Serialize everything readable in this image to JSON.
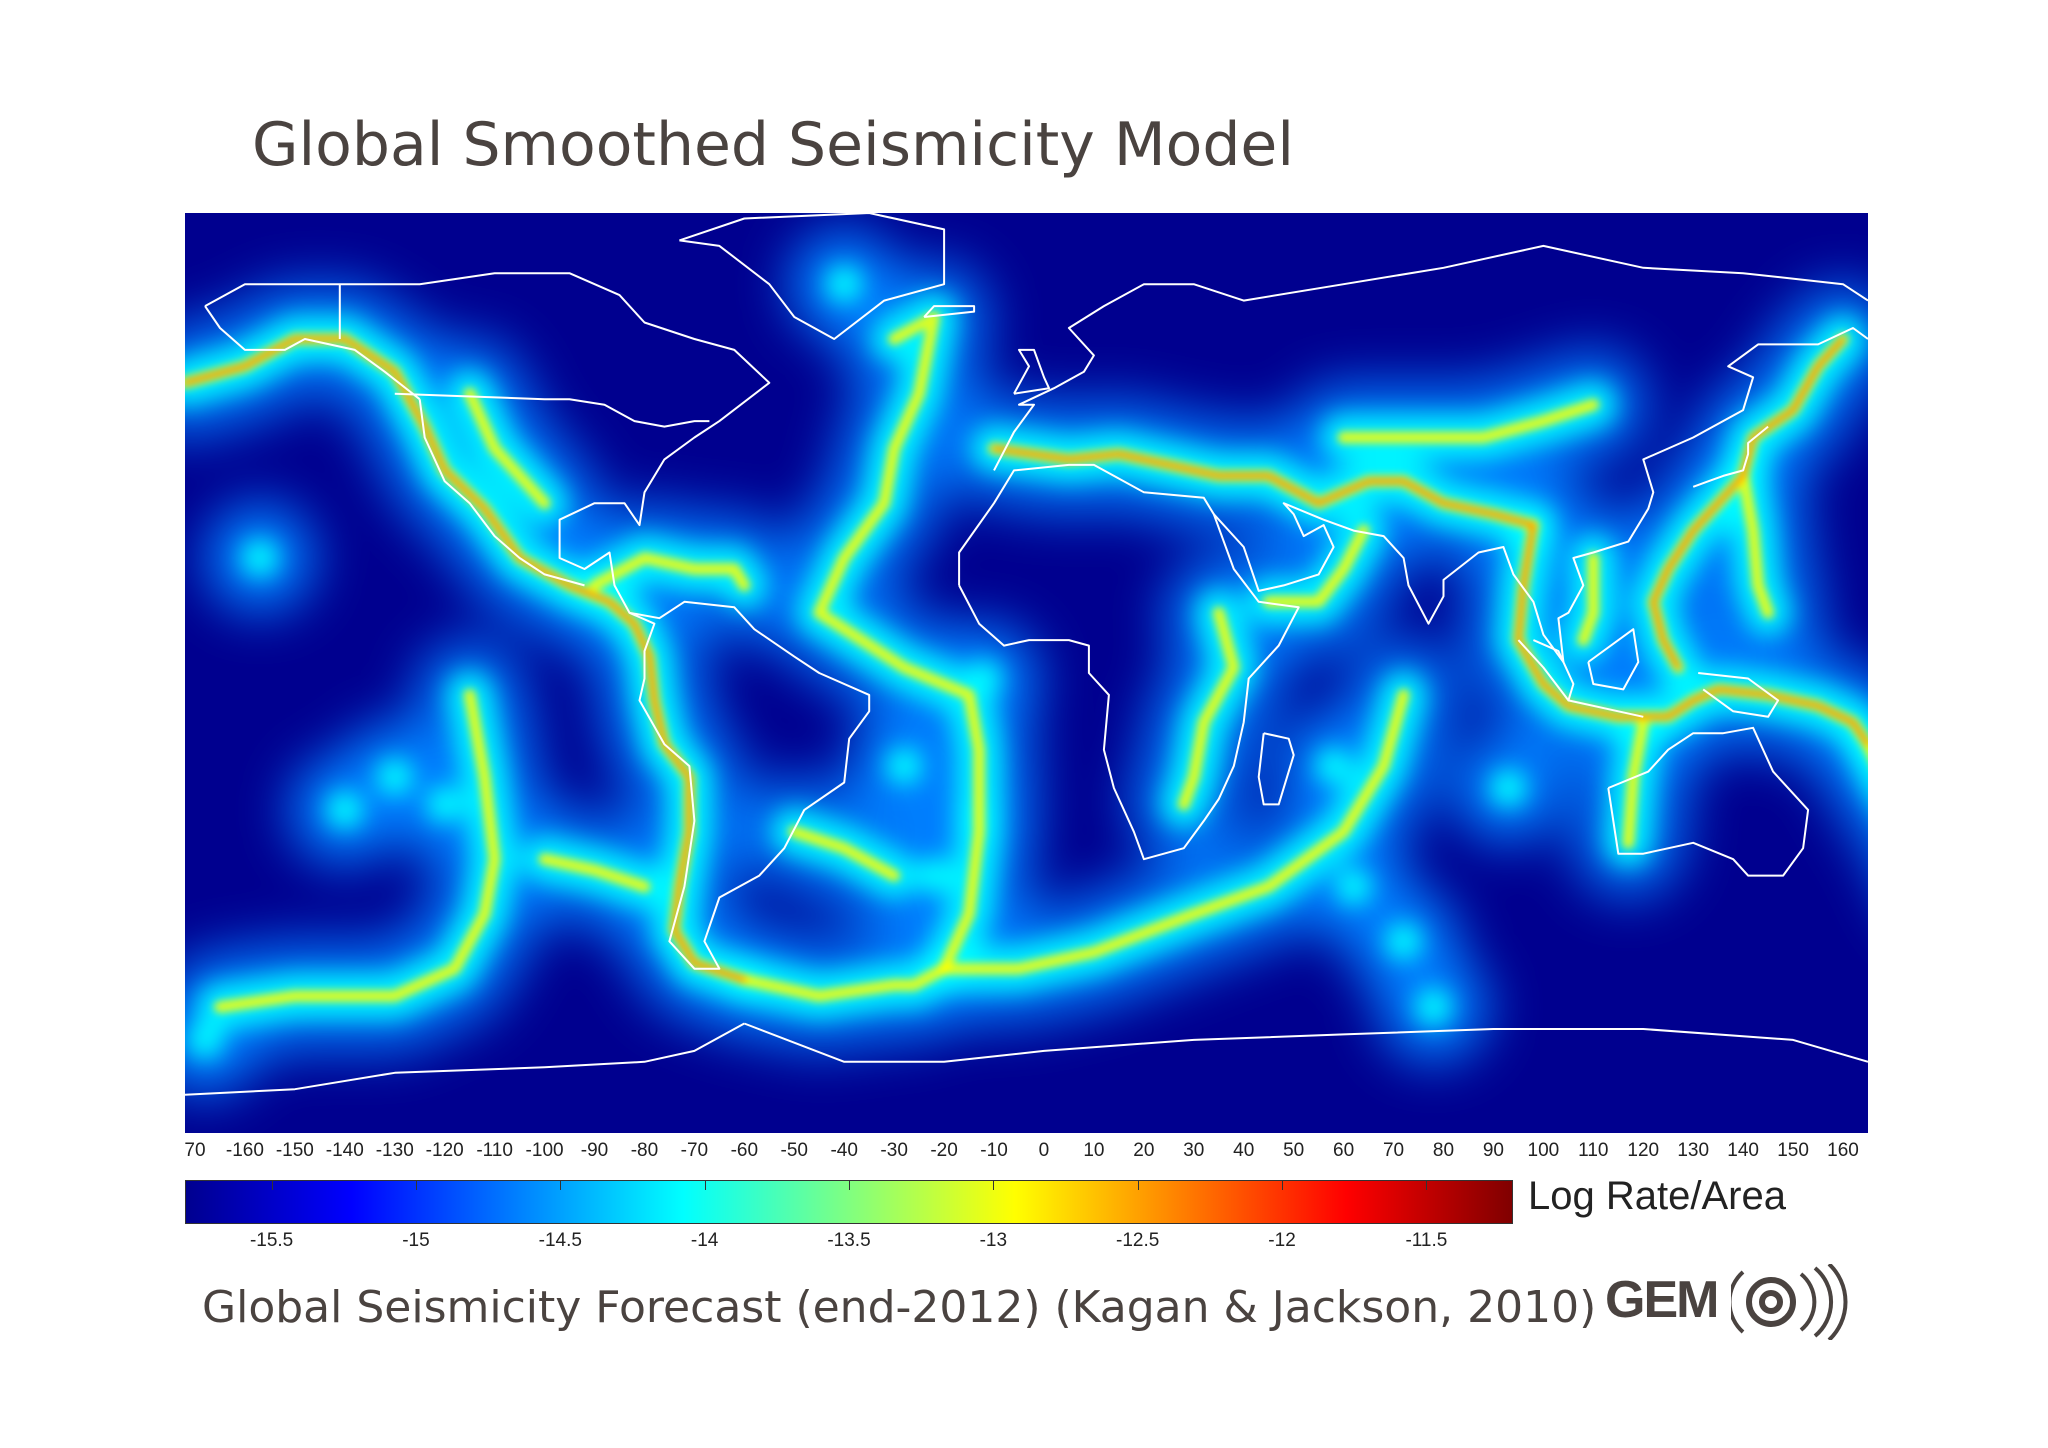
{
  "slide": {
    "title": "Global Smoothed Seismicity Model",
    "caption": "Global Seismicity Forecast (end-2012) (Kagan & Jackson, 2010)"
  },
  "map": {
    "type": "heatmap",
    "background_color": "#00008f",
    "coastline_color": "#ffffff",
    "longitude_ticks": [
      "70",
      "-160",
      "-150",
      "-140",
      "-130",
      "-120",
      "-110",
      "-100",
      "-90",
      "-80",
      "-70",
      "-60",
      "-50",
      "-40",
      "-30",
      "-20",
      "-10",
      "0",
      "10",
      "20",
      "30",
      "40",
      "50",
      "60",
      "70",
      "80",
      "90",
      "100",
      "110",
      "120",
      "130",
      "140",
      "150",
      "160"
    ]
  },
  "colorbar": {
    "label": "Log Rate/Area",
    "range": [
      -15.8,
      -11.2
    ],
    "ticks": [
      "-15.5",
      "-15",
      "-14.5",
      "-14",
      "-13.5",
      "-13",
      "-12.5",
      "-12",
      "-11.5"
    ],
    "colormap": [
      "#00008f",
      "#0000ff",
      "#0080ff",
      "#00ffff",
      "#80ff80",
      "#ffff00",
      "#ff8000",
      "#ff0000",
      "#800000"
    ]
  },
  "logo": {
    "text": "GEM",
    "icon": "seismic-wave-icon"
  }
}
